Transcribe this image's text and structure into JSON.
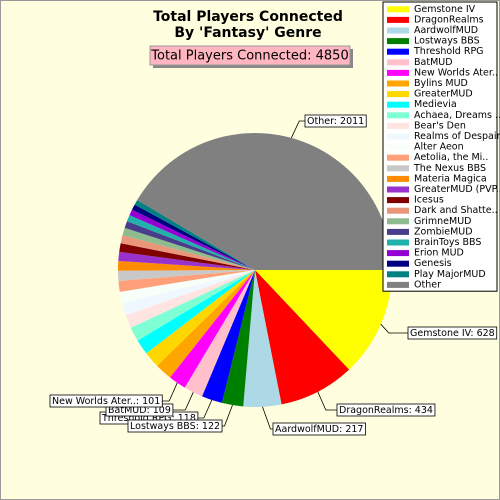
{
  "chart_data": {
    "type": "pie",
    "title": "Total Players Connected",
    "subtitle": "By 'Fantasy' Genre",
    "annotation": "Total Players Connected: 4850",
    "categories": [
      "Gemstone IV",
      "DragonRealms",
      "AardwolfMUD",
      "Lostways BBS",
      "Threshold RPG",
      "BatMUD",
      "New Worlds Ater..",
      "Bylins MUD",
      "GreaterMUD",
      "Medievia",
      "Achaea, Dreams ...",
      "Bear's Den",
      "Realms of Despair",
      "Alter Aeon",
      "Aetolia, the Mi..",
      "The Nexus BBS",
      "Materia Magica",
      "GreaterMUD (PVP..",
      "Icesus",
      "Dark and Shatte..",
      "GrimneMUD",
      "ZombieMUD",
      "BrainToys BBS",
      "Erion MUD",
      "Genesis",
      "Play MajorMUD",
      "Other"
    ],
    "values": [
      628,
      434,
      217,
      122,
      118,
      109,
      101,
      98,
      93,
      87,
      82,
      76,
      70,
      66,
      62,
      58,
      55,
      52,
      49,
      46,
      43,
      40,
      37,
      34,
      32,
      30,
      2011
    ],
    "value_labels": [
      "Gemstone IV: 628",
      "DragonRealms: 434",
      "AardwolfMUD: 217",
      "Lostways BBS: 122",
      "Threshold RPG: 118",
      "BatMUD: 109",
      "New Worlds Ater..: 101",
      null,
      null,
      null,
      null,
      null,
      null,
      null,
      null,
      null,
      null,
      null,
      null,
      null,
      null,
      null,
      null,
      null,
      null,
      null,
      "Other: 2011"
    ],
    "colors": [
      "#ffff00",
      "#ff0000",
      "#add8e6",
      "#008000",
      "#0000ff",
      "#ffc0cb",
      "#ff00ff",
      "#ffa500",
      "#ffd700",
      "#00ffff",
      "#7fffd4",
      "#ffe4e1",
      "#f0f8ff",
      "#f8fff8",
      "#ffa07a",
      "#c8c8c8",
      "#ff8c00",
      "#9932cc",
      "#800000",
      "#e9967a",
      "#8fbc8f",
      "#483d8b",
      "#20b2aa",
      "#9400d3",
      "#000080",
      "#008080",
      "#808080"
    ],
    "legend": "upper right"
  }
}
